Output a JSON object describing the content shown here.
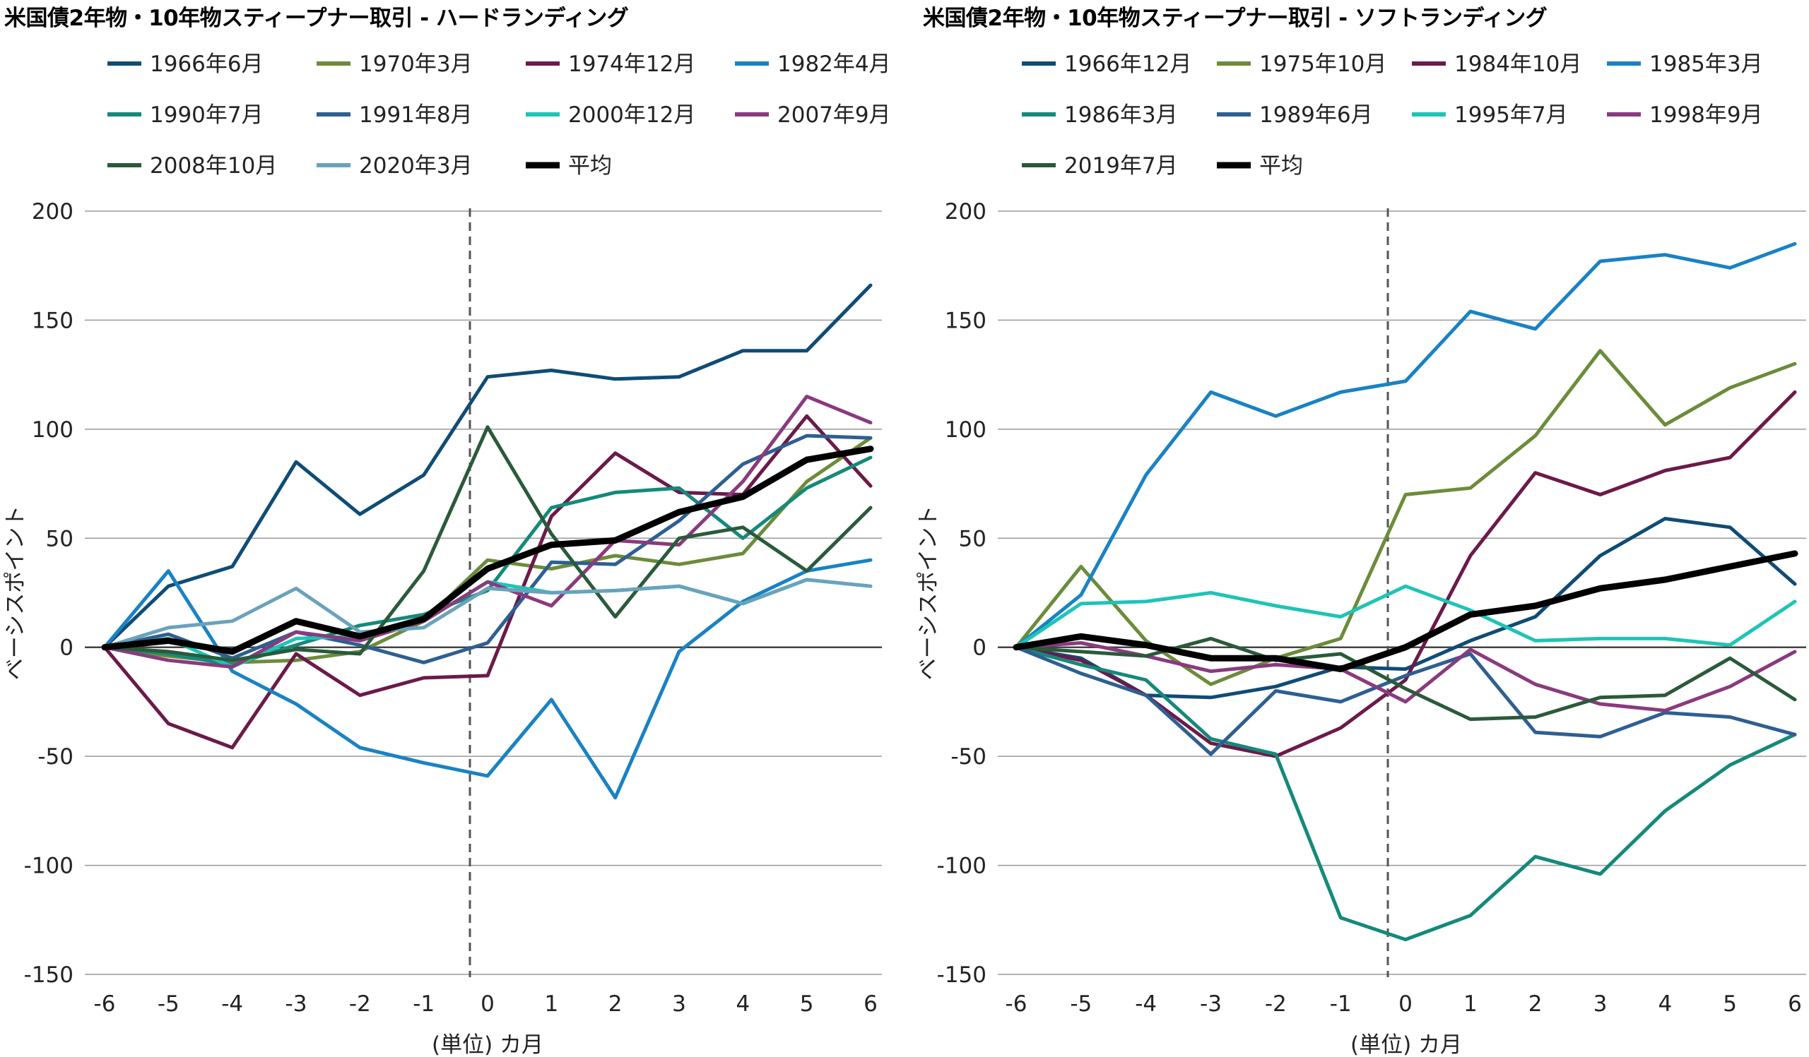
{
  "chart_data": [
    {
      "type": "line",
      "title": "米国債2年物・10年物スティープナー取引 - ハードランディング",
      "xlabel": "(単位) カ月",
      "ylabel": "ベーシスポイント",
      "x": [
        -6,
        -5,
        -4,
        -3,
        -2,
        -1,
        0,
        1,
        2,
        3,
        4,
        5,
        6
      ],
      "x_tick_labels": [
        "-6",
        "-5",
        "-4",
        "-3",
        "-2",
        "-1",
        "0",
        "1",
        "2",
        "3",
        "4",
        "5",
        "6"
      ],
      "yticks": [
        200,
        150,
        100,
        50,
        0,
        -50,
        -100,
        -150
      ],
      "ytick_labels": [
        "200",
        "150",
        "100",
        "50",
        "0",
        "-50",
        "-100",
        "-150"
      ],
      "ylim": [
        -150,
        200
      ],
      "grid": "horizontal",
      "legend_position": "top",
      "event_line_x": 0,
      "series": [
        {
          "name": "1966年6月",
          "color": "#0f4c75",
          "width": 5,
          "values": [
            0,
            28,
            37,
            85,
            61,
            79,
            124,
            127,
            123,
            124,
            136,
            136,
            166
          ]
        },
        {
          "name": "1970年3月",
          "color": "#6b8c3a",
          "width": 5,
          "values": [
            0,
            -4,
            -7,
            -6,
            -2,
            12,
            40,
            36,
            42,
            38,
            43,
            76,
            96
          ]
        },
        {
          "name": "1974年12月",
          "color": "#6b1a4a",
          "width": 5,
          "values": [
            0,
            -35,
            -46,
            -3,
            -22,
            -14,
            -13,
            60,
            89,
            71,
            70,
            106,
            74
          ]
        },
        {
          "name": "1982年4月",
          "color": "#1982c4",
          "width": 5,
          "values": [
            0,
            35,
            -11,
            -26,
            -46,
            -53,
            -59,
            -24,
            -69,
            -2,
            21,
            35,
            40
          ]
        },
        {
          "name": "1990年7月",
          "color": "#15897a",
          "width": 5,
          "values": [
            0,
            -3,
            -8,
            1,
            10,
            15,
            26,
            64,
            71,
            73,
            50,
            73,
            87
          ]
        },
        {
          "name": "1991年8月",
          "color": "#2e5f91",
          "width": 5,
          "values": [
            0,
            6,
            -5,
            7,
            1,
            -7,
            2,
            39,
            38,
            58,
            84,
            97,
            96
          ]
        },
        {
          "name": "2000年12月",
          "color": "#1ec4b6",
          "width": 5,
          "values": [
            0,
            4,
            -9,
            4,
            5,
            12,
            30,
            25,
            26,
            28,
            20,
            31,
            28
          ]
        },
        {
          "name": "2007年9月",
          "color": "#8a3a7e",
          "width": 5,
          "values": [
            0,
            -6,
            -9,
            7,
            3,
            12,
            30,
            19,
            49,
            47,
            76,
            115,
            103
          ]
        },
        {
          "name": "2008年10月",
          "color": "#2a5a3a",
          "width": 5,
          "values": [
            0,
            -2,
            -6,
            -1,
            -3,
            35,
            101,
            52,
            14,
            50,
            55,
            35,
            64
          ]
        },
        {
          "name": "2020年3月",
          "color": "#6aa2bc",
          "width": 5,
          "values": [
            0,
            9,
            12,
            27,
            7,
            9,
            27,
            25,
            26,
            28,
            20,
            31,
            28
          ]
        },
        {
          "name": "平均",
          "color": "#000000",
          "width": 9,
          "values": [
            0,
            3,
            -2,
            12,
            5,
            13,
            36,
            47,
            49,
            62,
            69,
            86,
            91
          ]
        }
      ]
    },
    {
      "type": "line",
      "title": "米国債2年物・10年物スティープナー取引 - ソフトランディング",
      "xlabel": "(単位) カ月",
      "ylabel": "ベーシスポイント",
      "x": [
        -6,
        -5,
        -4,
        -3,
        -2,
        -1,
        0,
        1,
        2,
        3,
        4,
        5,
        6
      ],
      "x_tick_labels": [
        "-6",
        "-5",
        "-4",
        "-3",
        "-2",
        "-1",
        "0",
        "1",
        "2",
        "3",
        "4",
        "5",
        "6"
      ],
      "yticks": [
        200,
        150,
        100,
        50,
        0,
        -50,
        -100,
        -150
      ],
      "ytick_labels": [
        "200",
        "150",
        "100",
        "50",
        "0",
        "-50",
        "-100",
        "-150"
      ],
      "ylim": [
        -150,
        200
      ],
      "grid": "horizontal",
      "legend_position": "top",
      "event_line_x": 0,
      "series": [
        {
          "name": "1966年12月",
          "color": "#0f4c75",
          "width": 5,
          "values": [
            0,
            -5,
            -22,
            -23,
            -18,
            -9,
            -10,
            3,
            14,
            42,
            59,
            55,
            29
          ]
        },
        {
          "name": "1975年10月",
          "color": "#6b8c3a",
          "width": 5,
          "values": [
            0,
            37,
            3,
            -17,
            -5,
            4,
            70,
            73,
            97,
            136,
            102,
            119,
            130
          ]
        },
        {
          "name": "1984年10月",
          "color": "#6b1a4a",
          "width": 5,
          "values": [
            0,
            -6,
            -22,
            -44,
            -50,
            -37,
            -15,
            42,
            80,
            70,
            81,
            87,
            117
          ]
        },
        {
          "name": "1985年3月",
          "color": "#1982c4",
          "width": 5,
          "values": [
            0,
            24,
            79,
            117,
            106,
            117,
            122,
            154,
            146,
            177,
            180,
            174,
            185
          ]
        },
        {
          "name": "1986年3月",
          "color": "#15897a",
          "width": 5,
          "values": [
            0,
            -8,
            -15,
            -42,
            -49,
            -124,
            -134,
            -123,
            -96,
            -104,
            -75,
            -54,
            -40
          ]
        },
        {
          "name": "1989年6月",
          "color": "#2e5f91",
          "width": 5,
          "values": [
            0,
            -12,
            -22,
            -49,
            -20,
            -25,
            -13,
            -3,
            -39,
            -41,
            -30,
            -32,
            -40
          ]
        },
        {
          "name": "1995年7月",
          "color": "#1ec4b6",
          "width": 5,
          "values": [
            0,
            20,
            21,
            25,
            19,
            14,
            28,
            17,
            3,
            4,
            4,
            1,
            21
          ]
        },
        {
          "name": "1998年9月",
          "color": "#8a3a7e",
          "width": 5,
          "values": [
            0,
            2,
            -4,
            -11,
            -8,
            -10,
            -25,
            -1,
            -17,
            -26,
            -29,
            -18,
            -2
          ]
        },
        {
          "name": "2019年7月",
          "color": "#2a5a3a",
          "width": 5,
          "values": [
            0,
            -2,
            -4,
            4,
            -6,
            -3,
            -19,
            -33,
            -32,
            -23,
            -22,
            -5,
            -24
          ]
        },
        {
          "name": "平均",
          "color": "#000000",
          "width": 9,
          "values": [
            0,
            5,
            1,
            -5,
            -5,
            -10,
            0,
            15,
            19,
            27,
            31,
            37,
            43
          ]
        }
      ]
    }
  ]
}
